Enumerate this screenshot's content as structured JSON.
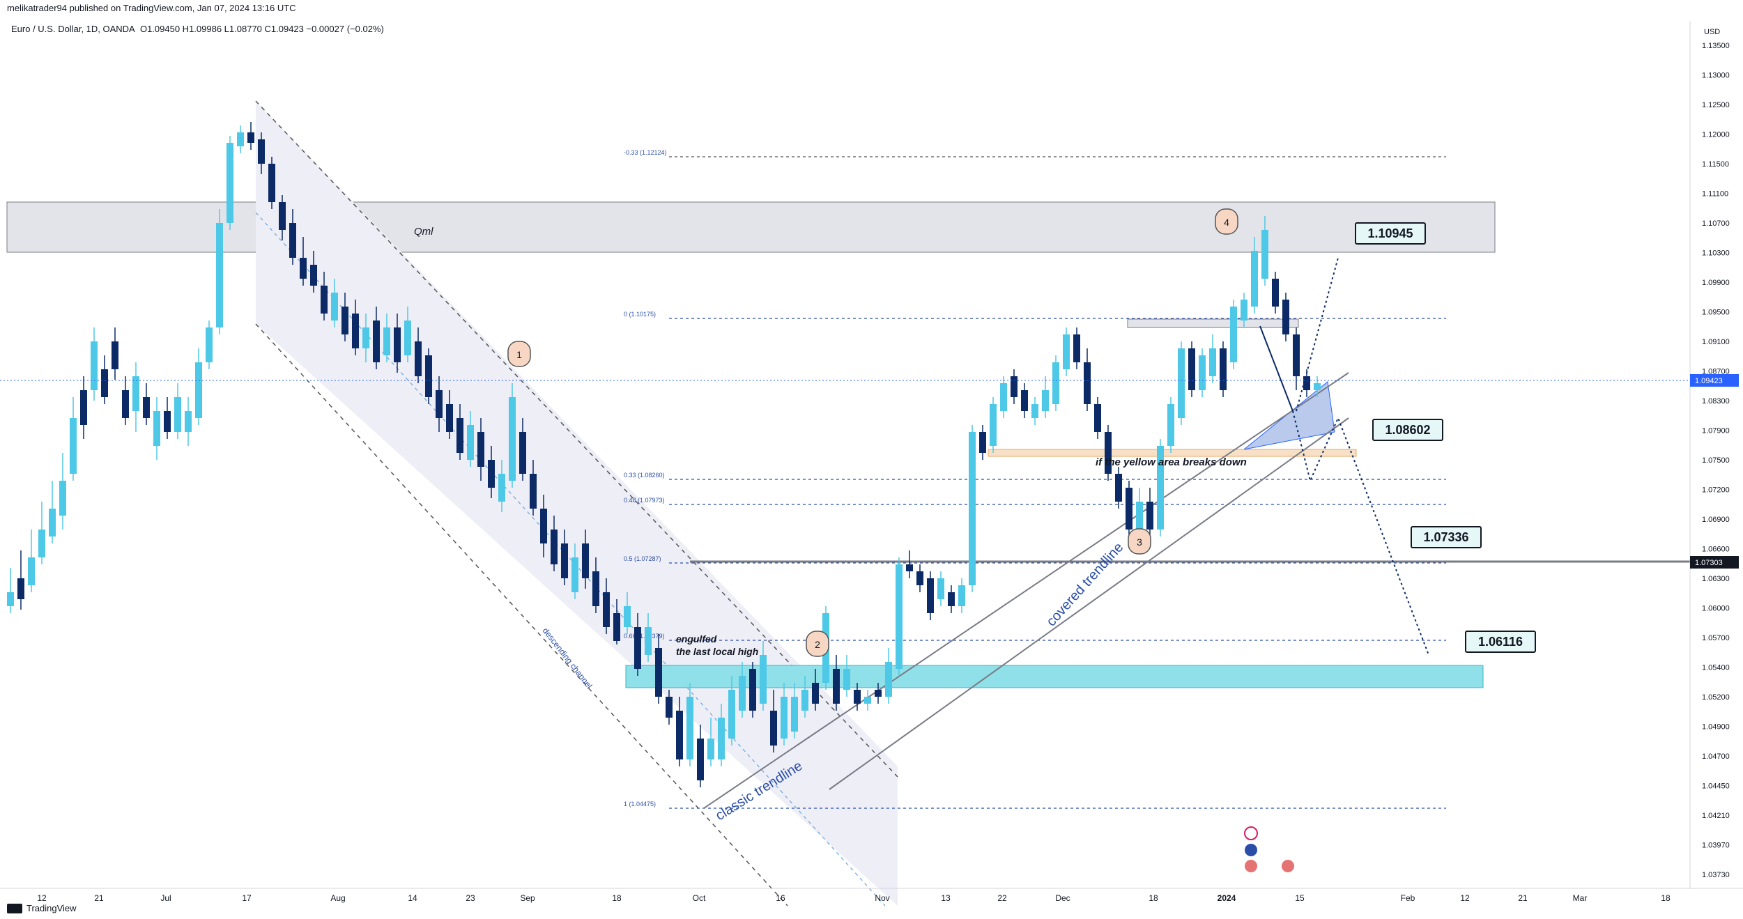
{
  "header": {
    "published": "melikatrader94 published on TradingView.com, Jan 07, 2024 13:16 UTC",
    "symbol": "Euro / U.S. Dollar, 1D, OANDA",
    "ohlc": "O1.09450  H1.09986  L1.08770  C1.09423  −0.00027 (−0.02%)"
  },
  "footer": {
    "brand": "TradingView"
  },
  "currency": "USD",
  "colors": {
    "up": "#22ab94",
    "up_fill": "#26a69a",
    "down": "#0b2a66",
    "up_candle": "#4dc8e6",
    "qml_zone": "#e3e4ea",
    "teal_zone": "#8fe0e8",
    "orange_zone": "#f7e0c5",
    "blue_wedge": "#a9bde9",
    "channel_fill": "#eeeef7",
    "label_bg": "#e6f7f8",
    "price_tag": "#2962ff",
    "circle": "#f7d7c4"
  },
  "chart_data": {
    "type": "candlestick",
    "title": "Euro / U.S. Dollar, 1D, OANDA",
    "y_ticks": [
      "1.13500",
      "1.13000",
      "1.12500",
      "1.12000",
      "1.11500",
      "1.11100",
      "1.10700",
      "1.10300",
      "1.09900",
      "1.09500",
      "1.09100",
      "1.08700",
      "1.08300",
      "1.07900",
      "1.07500",
      "1.07200",
      "1.06900",
      "1.06600",
      "1.06300",
      "1.06000",
      "1.05700",
      "1.05400",
      "1.05200",
      "1.04900",
      "1.04700",
      "1.04450",
      "1.04210",
      "1.03970",
      "1.03730"
    ],
    "x_ticks": [
      "12",
      "21",
      "Jul",
      "17",
      "Aug",
      "14",
      "23",
      "Sep",
      "18",
      "Oct",
      "16",
      "Nov",
      "13",
      "22",
      "Dec",
      "18",
      "2024",
      "15",
      "Feb",
      "12",
      "21",
      "Mar",
      "18"
    ],
    "current_price": "1.09423",
    "level_price": "1.07303",
    "fib_levels": [
      {
        "label": "-0.33 (1.12124)",
        "value": 1.12124
      },
      {
        "label": "0 (1.10175)",
        "value": 1.10175
      },
      {
        "label": "0.33 (1.08260)",
        "value": 1.0826
      },
      {
        "label": "0.48 (1.07973)",
        "value": 1.07973
      },
      {
        "label": "0.5 (1.07287)",
        "value": 1.07287
      },
      {
        "label": "0.66 (1.06379)",
        "value": 1.06379
      },
      {
        "label": "1 (1.04475)",
        "value": 1.04475
      }
    ],
    "targets": [
      "1.10945",
      "1.08602",
      "1.07336",
      "1.06116"
    ],
    "annotations": {
      "qml": "Qml",
      "descending_channel": "descending channel",
      "classic_trendline": "classic trendline",
      "covered_trendline": "covered trendline",
      "engulfed_1": "engulfed",
      "engulfed_2": "the last local high",
      "yellow_area": "if the yellow area breaks down",
      "points": [
        "1",
        "2",
        "3",
        "4"
      ]
    }
  }
}
